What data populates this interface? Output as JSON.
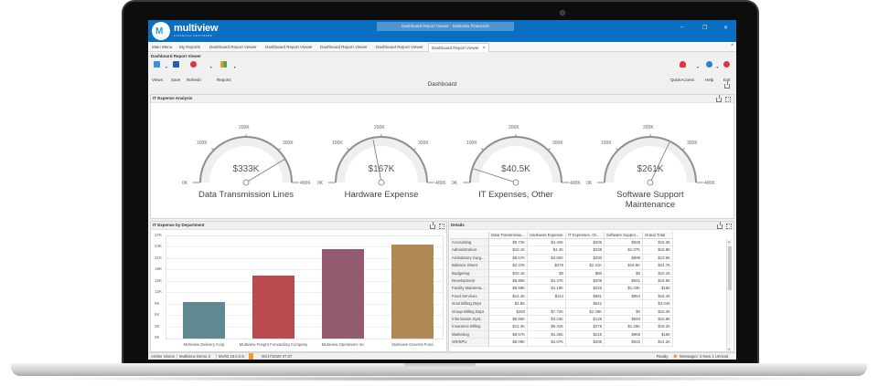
{
  "window": {
    "brand": "multiview",
    "brand_sub": "FINANCIAL SOFTWARE",
    "title": "Dashboard Report Viewer - Multiview Financials",
    "controls": {
      "minimize": "–",
      "restore": "❐",
      "close": "✕"
    }
  },
  "tabs": [
    {
      "label": "Main Menu"
    },
    {
      "label": "My Reports"
    },
    {
      "label": "Dashboard Report Viewer"
    },
    {
      "label": "Dashboard Report Viewer"
    },
    {
      "label": "Dashboard Report Viewer"
    },
    {
      "label": "Dashboard Report Viewer"
    },
    {
      "label": "Dashboard Report Viewer",
      "active": true,
      "close": "×"
    }
  ],
  "tabs_close": "×",
  "ribbon": {
    "group": "Dashboard Report Viewer",
    "left_buttons": [
      {
        "label": "Views",
        "icon": "views-icon",
        "color": "#3d8fd8"
      },
      {
        "label": "Save",
        "icon": "save-icon",
        "color": "#1f5fb2"
      },
      {
        "label": "Refresh",
        "icon": "refresh-icon",
        "color": "#e0343a"
      },
      {
        "label": "Reports",
        "icon": "reports-icon",
        "color": "#e39b2b"
      }
    ],
    "right_buttons": [
      {
        "label": "QuickAccess",
        "icon": "heart-icon",
        "color": "#e8303a"
      },
      {
        "label": "Help",
        "icon": "info-icon",
        "color": "#2c7fd6"
      },
      {
        "label": "Exit",
        "icon": "exit-icon",
        "color": "#e0343a"
      }
    ]
  },
  "dashboard": {
    "title": "Dashboard"
  },
  "gauges_panel": {
    "title": "IT Expense Analysis",
    "scale": [
      "0K",
      "100K",
      "200K",
      "300K",
      "400K"
    ],
    "gauges": [
      {
        "value_label": "$333K",
        "value": 333,
        "label": "Data Transmission Lines"
      },
      {
        "value_label": "$167K",
        "value": 167,
        "label": "Hardware Expense"
      },
      {
        "value_label": "$40.5K",
        "value": 40.5,
        "label": "IT Expenses, Other"
      },
      {
        "value_label": "$261K",
        "value": 261,
        "label": "Software Support Maintenance"
      }
    ]
  },
  "bar_panel": {
    "title": "IT Expense by Department"
  },
  "chart_data": {
    "type": "bar",
    "title": "IT Expense by Department",
    "categories": [
      "Multiview Delivery Corp",
      "Multiview Freight Forwarding Company",
      "Multiview Operations Inc",
      "Multiview General Fund"
    ],
    "values": [
      9700,
      16700,
      23600,
      24900
    ],
    "colors": [
      "#5f8a94",
      "#b84b50",
      "#935b70",
      "#b08853"
    ],
    "yticks": [
      "0K",
      "3K",
      "6K",
      "9K",
      "12K",
      "15K",
      "18K",
      "21K",
      "24K",
      "27K"
    ],
    "ylim": [
      0,
      27000
    ],
    "xlabel": "",
    "ylabel": "",
    "grid": true
  },
  "details_panel": {
    "title": "Details",
    "columns": [
      "Data Transmissio...",
      "Hardware Expense",
      "IT Expenses, Ot...",
      "Software Suppor...",
      "Grand Total"
    ],
    "rows": [
      {
        "name": "Accounting",
        "cells": [
          "$9.72K",
          "$4.42K",
          "$206",
          "$925",
          "$15.3K"
        ]
      },
      {
        "name": "Administration",
        "cells": [
          "$10.1K",
          "$4.4K",
          "$238",
          "$1.07K",
          "$15.8K"
        ]
      },
      {
        "name": "Ambulatory Surg...",
        "cells": [
          "$8.67K",
          "$3.82K",
          "$200",
          "$899",
          "$13.6K"
        ]
      },
      {
        "name": "Balance Sheet",
        "cells": [
          "$2.37K",
          "$275",
          "$2.41K",
          "$19.6K",
          "$24.7K"
        ]
      },
      {
        "name": "Budgeting",
        "cells": [
          "$10.1K",
          "$0",
          "$80",
          "$0",
          "$10.1K"
        ]
      },
      {
        "name": "Development",
        "cells": [
          "$9.85K",
          "$4.47K",
          "$209",
          "$941",
          "$15.5K"
        ]
      },
      {
        "name": "Facility Maintena...",
        "cells": [
          "$9.59K",
          "$4.19K",
          "$226",
          "$1.03K",
          "$15K"
        ]
      },
      {
        "name": "Food Services",
        "cells": [
          "$14.4K",
          "$114",
          "$881",
          "$954",
          "$16.4K"
        ]
      },
      {
        "name": "Govt Billing Dept",
        "cells": [
          "$2.5K",
          "",
          "$542",
          "",
          "$3.04K"
        ]
      },
      {
        "name": "Group Billing Dept",
        "cells": [
          "$250",
          "$7.72K",
          "$2.29K",
          "$0",
          "$10.3K"
        ]
      },
      {
        "name": "Information Syst...",
        "cells": [
          "$6.86K",
          "$3.23K",
          "$129",
          "$583",
          "$10.8K"
        ]
      },
      {
        "name": "Insurance Billing",
        "cells": [
          "$12.2K",
          "$5.41K",
          "$278",
          "$1.25K",
          "$19.2K"
        ]
      },
      {
        "name": "Marketing",
        "cells": [
          "$9.57K",
          "$4.26K",
          "$215",
          "$969",
          "$15K"
        ]
      },
      {
        "name": "OR/SPU",
        "cells": [
          "$9.06K",
          "$4.07K",
          "$205",
          "$922",
          "$14.2K"
        ]
      }
    ]
  },
  "status": {
    "user": "Amber Simon",
    "company": "Multiview Demo 3",
    "version": "MV03 19.0.0.5",
    "datetime": "06/17/2020 07:37",
    "ready": "Ready",
    "messages": "Messages: 2 New 1 Unread"
  }
}
